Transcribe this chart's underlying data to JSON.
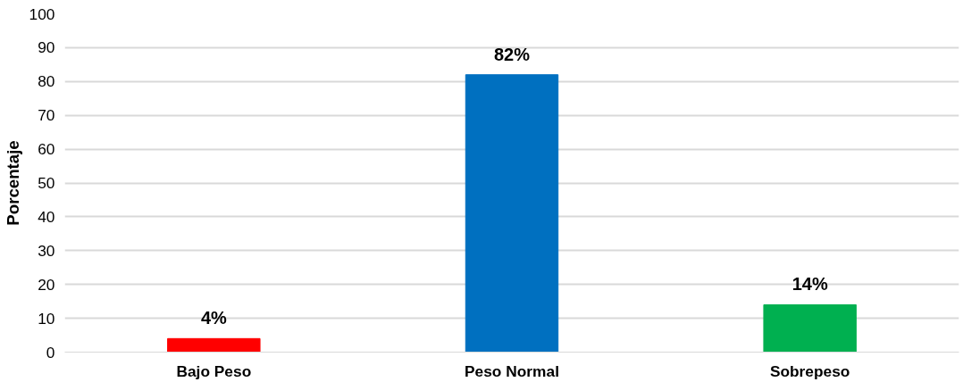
{
  "chart_data": {
    "type": "bar",
    "ylabel": "Porcentaje",
    "categories": [
      "Bajo Peso",
      "Peso Normal",
      "Sobrepeso"
    ],
    "values": [
      4,
      82,
      14
    ],
    "colors": [
      "#ff0000",
      "#0070c0",
      "#00b050"
    ],
    "value_labels": [
      "4%",
      "82%",
      "14%"
    ],
    "ylim": [
      0,
      100
    ],
    "yticks": [
      0,
      10,
      20,
      30,
      40,
      50,
      60,
      70,
      80,
      90,
      100
    ],
    "grid": "y"
  }
}
